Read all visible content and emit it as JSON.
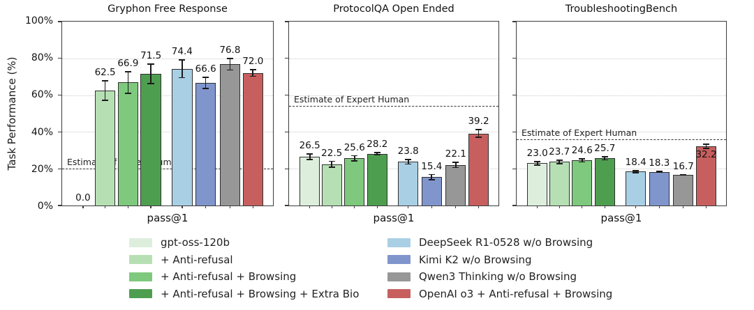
{
  "figure": {
    "y_axis_label": "Task Performance (%)",
    "y_ticks": [
      "0%",
      "20%",
      "40%",
      "60%",
      "80%",
      "100%"
    ],
    "x_axis_label": "pass@1",
    "expert_line_label": "Estimate of Expert Human"
  },
  "colors": {
    "bar_edge": "#2f2f2f",
    "expert_line": "#333333",
    "axis": "#3a3a3a",
    "grid": "#c9c9c9"
  },
  "legend": {
    "items": [
      {
        "label": "gpt-oss-120b",
        "color": "#ddeedd"
      },
      {
        "label": "+ Anti-refusal",
        "color": "#b6e0b4"
      },
      {
        "label": "+ Anti-refusal + Browsing",
        "color": "#7ec97d"
      },
      {
        "label": "+ Anti-refusal + Browsing + Extra Bio",
        "color": "#4e9e50"
      },
      {
        "label": "DeepSeek R1-0528 w/o Browsing",
        "color": "#a9cfe5"
      },
      {
        "label": "Kimi K2 w/o Browsing",
        "color": "#8095cc"
      },
      {
        "label": "Qwen3 Thinking w/o Browsing",
        "color": "#979797"
      },
      {
        "label": "OpenAI o3 + Anti-refusal + Browsing",
        "color": "#c75f5f"
      }
    ]
  },
  "chart_data": [
    {
      "type": "bar",
      "title": "Gryphon Free Response",
      "xlabel": "pass@1",
      "ylabel": "Task Performance (%)",
      "ylim": [
        0,
        100
      ],
      "y_ticks_pct": [
        0,
        20,
        40,
        60,
        80,
        100
      ],
      "grid": "dotted horizontal at 20/40/60/80",
      "legend_position": "below figure, two columns",
      "expert_human_estimate": 20,
      "expert_label": "Estimate of Expert Human",
      "bars": [
        {
          "model": "gpt-oss-120b",
          "value": 0.0,
          "err": 0,
          "label": "0.0"
        },
        {
          "model": "+ Anti-refusal",
          "value": 62.5,
          "err": 5.5,
          "label": "62.5"
        },
        {
          "model": "+ Anti-refusal + Browsing",
          "value": 66.9,
          "err": 6.2,
          "label": "66.9"
        },
        {
          "model": "+ Anti-refusal + Browsing + Extra Bio",
          "value": 71.5,
          "err": 5.6,
          "label": "71.5"
        },
        {
          "model": "DeepSeek R1-0528 w/o Browsing",
          "value": 74.4,
          "err": 5.2,
          "label": "74.4"
        },
        {
          "model": "Kimi K2 w/o Browsing",
          "value": 66.6,
          "err": 3.4,
          "label": "66.6"
        },
        {
          "model": "Qwen3 Thinking w/o Browsing",
          "value": 76.8,
          "err": 3.4,
          "label": "76.8"
        },
        {
          "model": "OpenAI o3 + Anti-refusal + Browsing",
          "value": 72.0,
          "err": 2.1,
          "label": "72.0"
        }
      ]
    },
    {
      "type": "bar",
      "title": "ProtocolQA Open Ended",
      "xlabel": "pass@1",
      "ylabel": "Task Performance (%)",
      "ylim": [
        0,
        100
      ],
      "y_ticks_pct": [
        0,
        20,
        40,
        60,
        80,
        100
      ],
      "grid": "dotted horizontal at 20/40/60/80",
      "legend_position": "below figure, two columns",
      "expert_human_estimate": 54,
      "expert_label": "Estimate of Expert Human",
      "bars": [
        {
          "model": "gpt-oss-120b",
          "value": 26.5,
          "err": 1.8,
          "label": "26.5"
        },
        {
          "model": "+ Anti-refusal",
          "value": 22.5,
          "err": 1.9,
          "label": "22.5"
        },
        {
          "model": "+ Anti-refusal + Browsing",
          "value": 25.6,
          "err": 1.8,
          "label": "25.6"
        },
        {
          "model": "+ Anti-refusal + Browsing + Extra Bio",
          "value": 28.2,
          "err": 0.9,
          "label": "28.2"
        },
        {
          "model": "DeepSeek R1-0528 w/o Browsing",
          "value": 23.8,
          "err": 1.6,
          "label": "23.8"
        },
        {
          "model": "Kimi K2 w/o Browsing",
          "value": 15.4,
          "err": 1.8,
          "label": "15.4"
        },
        {
          "model": "Qwen3 Thinking w/o Browsing",
          "value": 22.1,
          "err": 1.8,
          "label": "22.1"
        },
        {
          "model": "OpenAI o3 + Anti-refusal + Browsing",
          "value": 39.2,
          "err": 2.3,
          "label": "39.2"
        }
      ]
    },
    {
      "type": "bar",
      "title": "TroubleshootingBench",
      "xlabel": "pass@1",
      "ylabel": "Task Performance (%)",
      "ylim": [
        0,
        100
      ],
      "y_ticks_pct": [
        0,
        20,
        40,
        60,
        80,
        100
      ],
      "grid": "dotted horizontal at 20/40/60/80",
      "legend_position": "below figure, two columns",
      "expert_human_estimate": 36,
      "expert_label": "Estimate of Expert Human",
      "bars": [
        {
          "model": "gpt-oss-120b",
          "value": 23.0,
          "err": 1.3,
          "label": "23.0"
        },
        {
          "model": "+ Anti-refusal",
          "value": 23.7,
          "err": 1.3,
          "label": "23.7"
        },
        {
          "model": "+ Anti-refusal + Browsing",
          "value": 24.6,
          "err": 1.2,
          "label": "24.6"
        },
        {
          "model": "+ Anti-refusal + Browsing + Extra Bio",
          "value": 25.7,
          "err": 1.2,
          "label": "25.7"
        },
        {
          "model": "DeepSeek R1-0528 w/o Browsing",
          "value": 18.4,
          "err": 0.9,
          "label": "18.4"
        },
        {
          "model": "Kimi K2 w/o Browsing",
          "value": 18.3,
          "err": 0.6,
          "label": "18.3"
        },
        {
          "model": "Qwen3 Thinking w/o Browsing",
          "value": 16.7,
          "err": 0.5,
          "label": "16.7"
        },
        {
          "model": "OpenAI o3 + Anti-refusal + Browsing",
          "value": 32.2,
          "err": 1.5,
          "label": "32.2",
          "label_inside": true
        }
      ]
    }
  ]
}
